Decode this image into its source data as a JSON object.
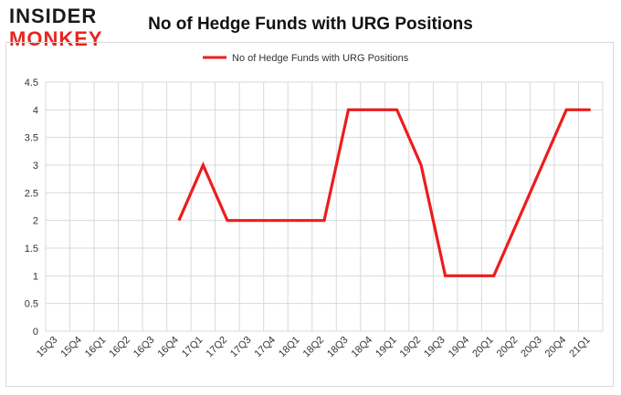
{
  "logo": {
    "line1": "INSIDER",
    "line2": "MONKEY"
  },
  "chart_data": {
    "type": "line",
    "title": "No of Hedge Funds with URG Positions",
    "xlabel": "",
    "ylabel": "",
    "ylim": [
      0,
      4.5
    ],
    "yticks": [
      "0",
      "0.5",
      "1",
      "1.5",
      "2",
      "2.5",
      "3",
      "3.5",
      "4",
      "4.5"
    ],
    "grid": true,
    "legend_position": "top",
    "line_color": "#ee1c1c",
    "categories": [
      "15Q3",
      "15Q4",
      "16Q1",
      "16Q2",
      "16Q3",
      "16Q4",
      "17Q1",
      "17Q2",
      "17Q3",
      "17Q4",
      "18Q1",
      "18Q2",
      "18Q3",
      "18Q4",
      "19Q1",
      "19Q2",
      "19Q3",
      "19Q4",
      "20Q1",
      "20Q2",
      "20Q3",
      "20Q4",
      "21Q1"
    ],
    "series": [
      {
        "name": "No of Hedge Funds with URG Positions",
        "values": [
          null,
          null,
          null,
          null,
          null,
          2,
          3,
          2,
          2,
          2,
          2,
          2,
          4,
          4,
          4,
          3,
          1,
          1,
          1,
          2,
          3,
          4,
          4
        ]
      }
    ]
  }
}
